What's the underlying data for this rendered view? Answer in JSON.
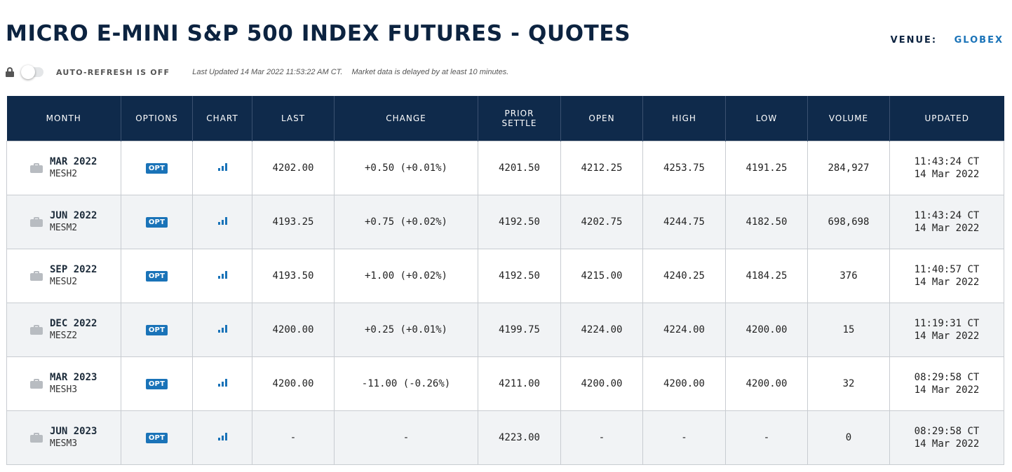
{
  "header": {
    "title": "MICRO E-MINI S&P 500 INDEX FUTURES - QUOTES",
    "venue_label": "VENUE:",
    "venue_value": "GLOBEX"
  },
  "subbar": {
    "auto_refresh": "AUTO-REFRESH IS OFF",
    "last_updated": "Last Updated 14 Mar 2022 11:53:22 AM CT.",
    "delay_note": "Market data is delayed by at least 10 minutes."
  },
  "columns": {
    "month": "MONTH",
    "options": "OPTIONS",
    "chart": "CHART",
    "last": "LAST",
    "change": "CHANGE",
    "prior_settle_1": "PRIOR",
    "prior_settle_2": "SETTLE",
    "open": "OPEN",
    "high": "HIGH",
    "low": "LOW",
    "volume": "VOLUME",
    "updated": "UPDATED"
  },
  "opt_label": "OPT",
  "colors": {
    "header_bg": "#0f2a4b",
    "accent": "#1a73b8",
    "positive": "#2e7d32",
    "negative": "#e53935"
  },
  "rows": [
    {
      "month": "MAR 2022",
      "code": "MESH2",
      "last": "4202.00",
      "change": "+0.50 (+0.01%)",
      "direction": "pos",
      "prior_settle": "4201.50",
      "open": "4212.25",
      "high": "4253.75",
      "low": "4191.25",
      "volume": "284,927",
      "updated_time": "11:43:24 CT",
      "updated_date": "14 Mar 2022"
    },
    {
      "month": "JUN 2022",
      "code": "MESM2",
      "last": "4193.25",
      "change": "+0.75 (+0.02%)",
      "direction": "pos",
      "prior_settle": "4192.50",
      "open": "4202.75",
      "high": "4244.75",
      "low": "4182.50",
      "volume": "698,698",
      "updated_time": "11:43:24 CT",
      "updated_date": "14 Mar 2022"
    },
    {
      "month": "SEP 2022",
      "code": "MESU2",
      "last": "4193.50",
      "change": "+1.00 (+0.02%)",
      "direction": "pos",
      "prior_settle": "4192.50",
      "open": "4215.00",
      "high": "4240.25",
      "low": "4184.25",
      "volume": "376",
      "updated_time": "11:40:57 CT",
      "updated_date": "14 Mar 2022"
    },
    {
      "month": "DEC 2022",
      "code": "MESZ2",
      "last": "4200.00",
      "change": "+0.25 (+0.01%)",
      "direction": "pos",
      "prior_settle": "4199.75",
      "open": "4224.00",
      "high": "4224.00",
      "low": "4200.00",
      "volume": "15",
      "updated_time": "11:19:31 CT",
      "updated_date": "14 Mar 2022"
    },
    {
      "month": "MAR 2023",
      "code": "MESH3",
      "last": "4200.00",
      "change": "-11.00 (-0.26%)",
      "direction": "neg",
      "prior_settle": "4211.00",
      "open": "4200.00",
      "high": "4200.00",
      "low": "4200.00",
      "volume": "32",
      "updated_time": "08:29:58 CT",
      "updated_date": "14 Mar 2022"
    },
    {
      "month": "JUN 2023",
      "code": "MESM3",
      "last": "-",
      "change": "-",
      "direction": "none",
      "prior_settle": "4223.00",
      "open": "-",
      "high": "-",
      "low": "-",
      "volume": "0",
      "updated_time": "08:29:58 CT",
      "updated_date": "14 Mar 2022"
    }
  ]
}
